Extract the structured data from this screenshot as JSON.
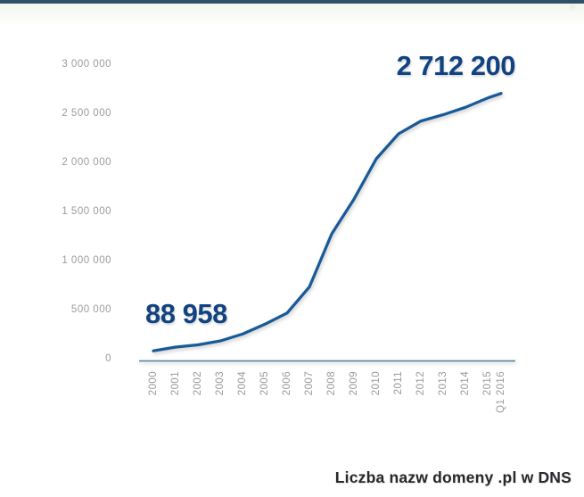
{
  "colors": {
    "topbar": "#2f5168",
    "line": "#175a97",
    "axis": "#4e7d99",
    "tick_label": "#9b9b9b",
    "annotation": "#124380",
    "title": "#28282c",
    "top_tint": "#f2f6ec"
  },
  "icons": {
    "corner_artifact": "✳"
  },
  "chart_data": {
    "type": "line",
    "title": "Liczba nazw domeny .pl w DNS",
    "x": [
      "2000",
      "2001",
      "2002",
      "2003",
      "2004",
      "2005",
      "2006",
      "2007",
      "2008",
      "2009",
      "2010",
      "2011",
      "2012",
      "2013",
      "2014",
      "2015",
      "Q1 2016"
    ],
    "values": [
      88958,
      127000,
      150000,
      190000,
      260000,
      360000,
      475000,
      740000,
      1280000,
      1635000,
      2045000,
      2300000,
      2430000,
      2495000,
      2570000,
      2665000,
      2712200
    ],
    "y_ticks": [
      {
        "label": "3 000 000",
        "value": 3000000
      },
      {
        "label": "2 500 000",
        "value": 2500000
      },
      {
        "label": "2 000 000",
        "value": 2000000
      },
      {
        "label": "1 500 000",
        "value": 1500000
      },
      {
        "label": "1 000 000",
        "value": 1000000
      },
      {
        "label": "500 000",
        "value": 500000
      },
      {
        "label": "0",
        "value": 0
      }
    ],
    "ylim": [
      0,
      3000000
    ],
    "grid": false,
    "legend": null,
    "annotations": [
      {
        "text": "88 958",
        "index": 0
      },
      {
        "text": "2 712 200",
        "index": 16
      }
    ]
  }
}
